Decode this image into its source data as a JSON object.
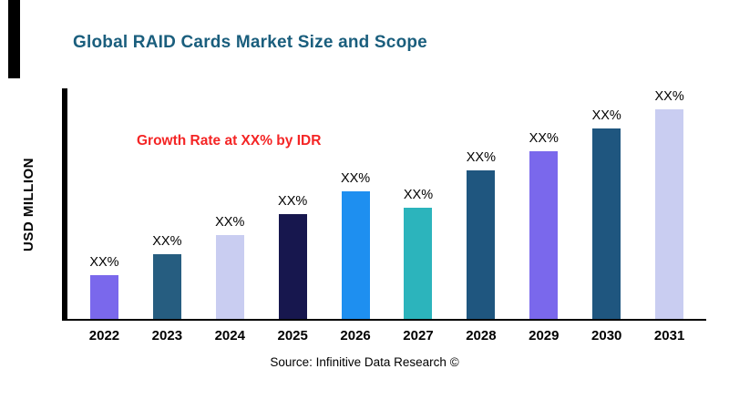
{
  "header": {
    "title": "Global RAID Cards Market Size and Scope",
    "title_color": "#1a5e7d"
  },
  "annotation": {
    "text": "Growth Rate at XX% by IDR",
    "color": "#f42525"
  },
  "source": {
    "text": "Source: Infinitive Data Research ©"
  },
  "chart_data": {
    "type": "bar",
    "title": "Global RAID Cards Market Size and Scope",
    "categories": [
      "2022",
      "2023",
      "2024",
      "2025",
      "2026",
      "2027",
      "2028",
      "2029",
      "2030",
      "2031"
    ],
    "values": [
      21,
      31,
      40,
      50,
      61,
      53,
      71,
      80,
      91,
      100
    ],
    "bar_labels": [
      "XX%",
      "XX%",
      "XX%",
      "XX%",
      "XX%",
      "XX%",
      "XX%",
      "XX%",
      "XX%",
      "XX%"
    ],
    "colors": [
      "#7a68ec",
      "#265d80",
      "#c9cdf1",
      "#17174e",
      "#1e8ff0",
      "#2cb4bc",
      "#1f567f",
      "#7a68ec",
      "#1f567f",
      "#c9cdf1"
    ],
    "xlabel": "",
    "ylabel": "USD MILLION",
    "ylim": [
      0,
      110
    ],
    "grid": false,
    "legend": "none",
    "axis_color": "#000000"
  }
}
